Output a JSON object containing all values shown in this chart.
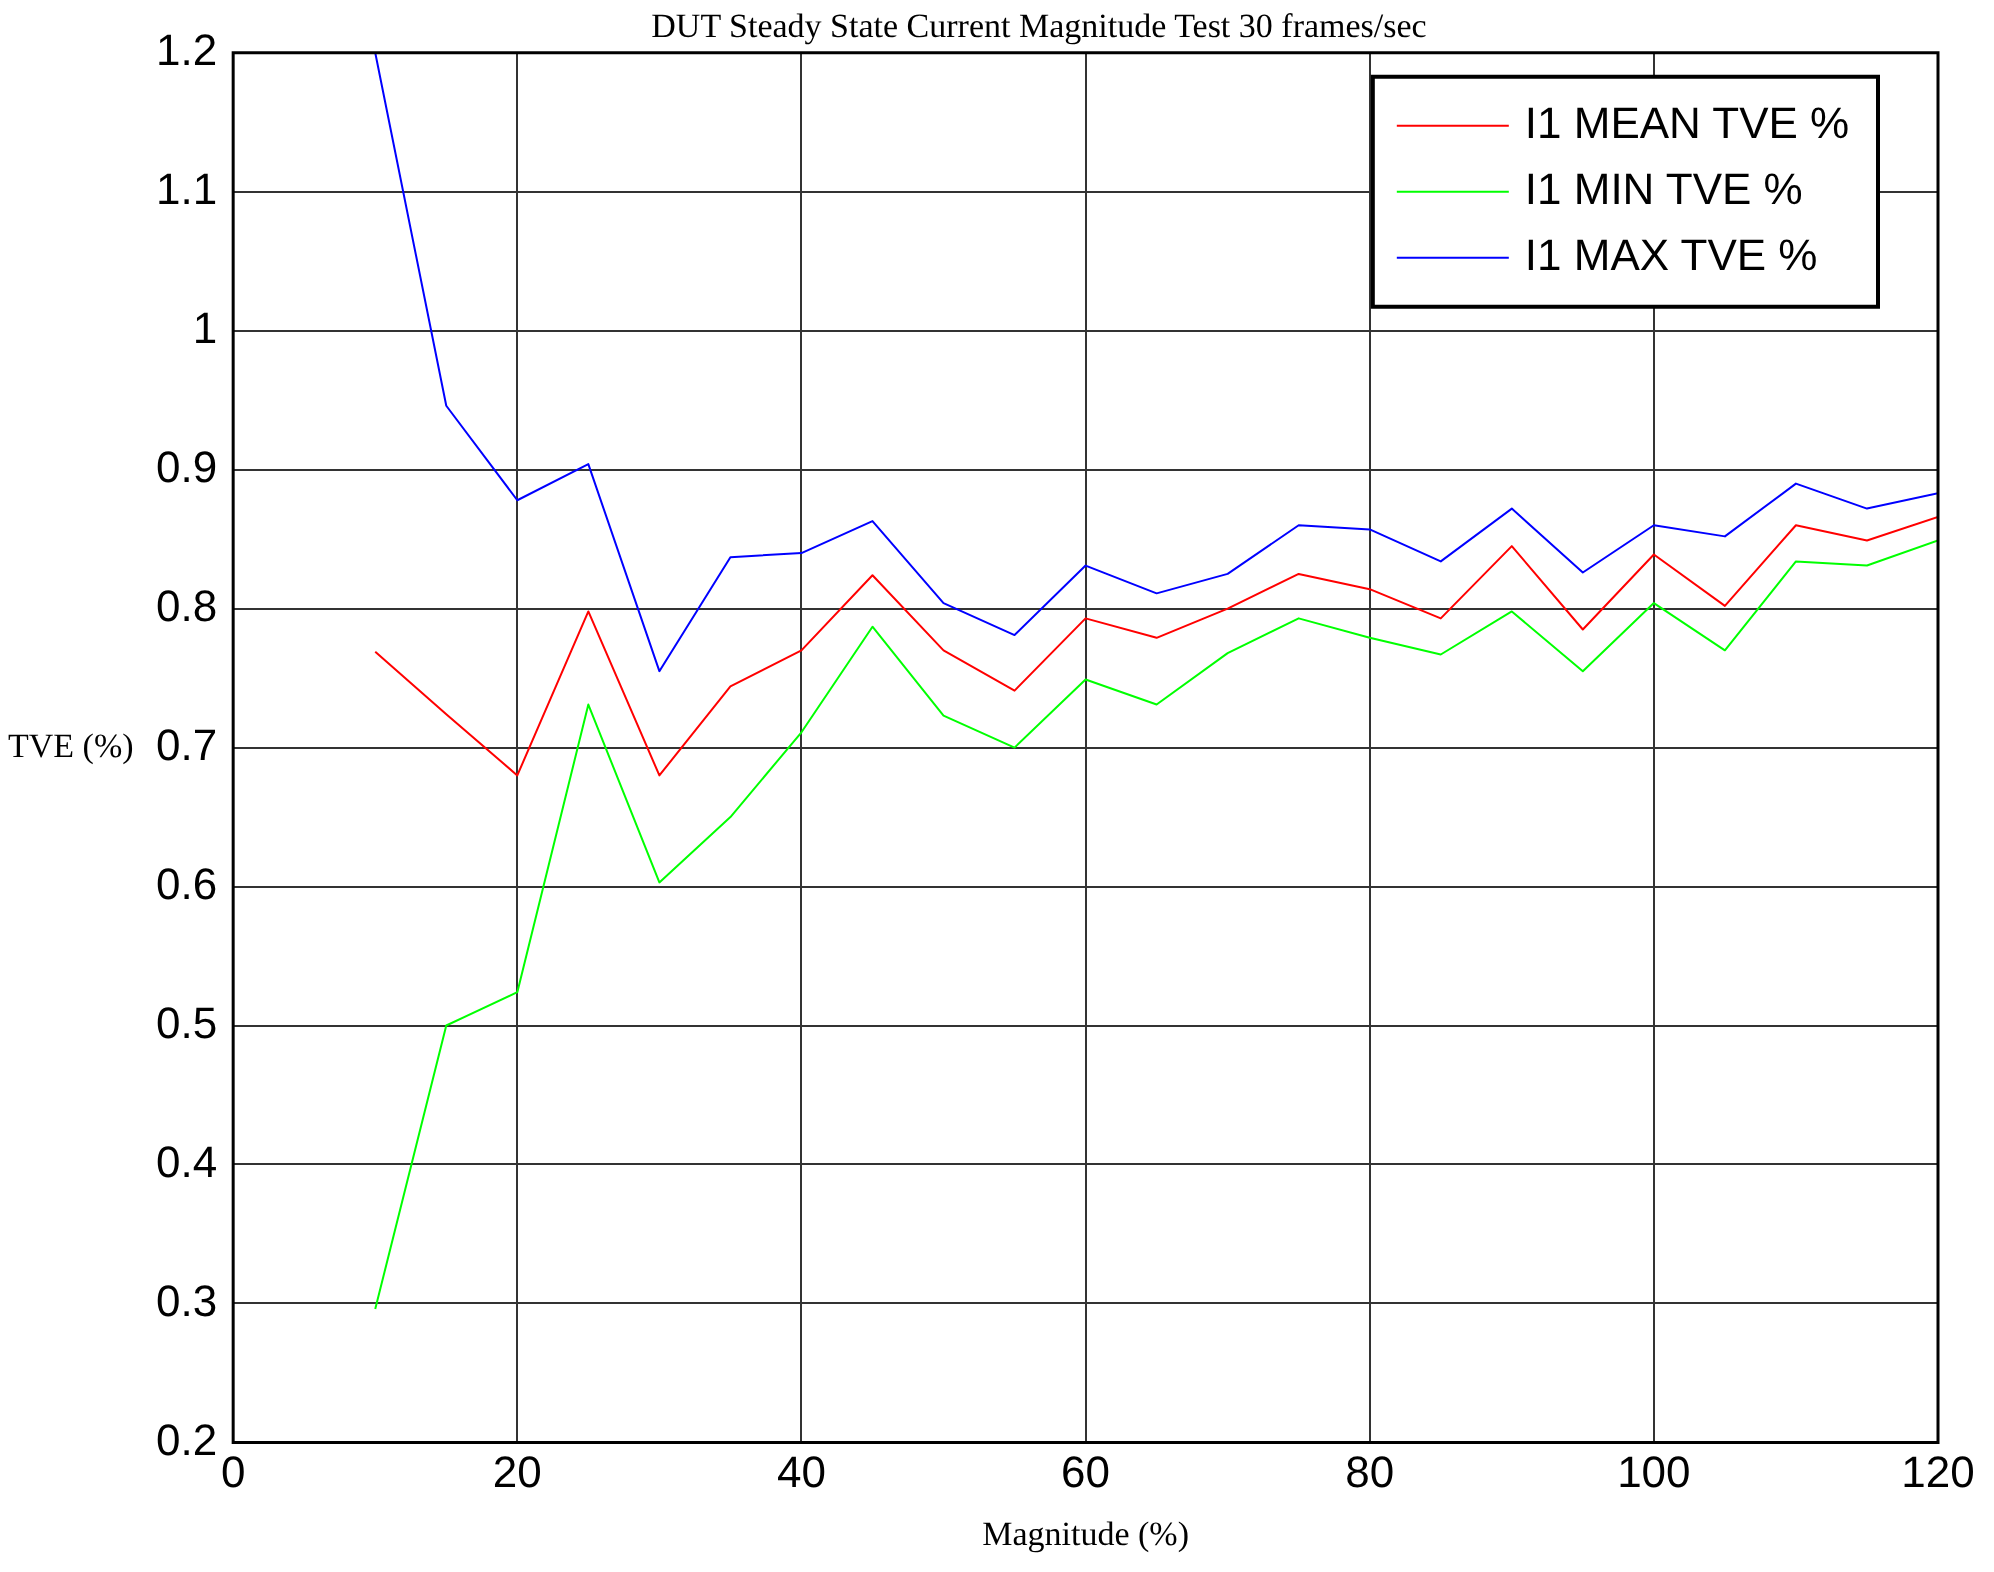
{
  "chart_data": {
    "type": "line",
    "title": "DUT Steady State Current Magnitude Test 30 frames/sec",
    "xlabel": "Magnitude (%)",
    "ylabel": "TVE (%)",
    "x": [
      10,
      15,
      20,
      25,
      30,
      35,
      40,
      45,
      50,
      55,
      60,
      65,
      70,
      75,
      80,
      85,
      90,
      95,
      100,
      105,
      110,
      115,
      120
    ],
    "series": [
      {
        "name": "I1 MEAN TVE %",
        "color": "#ff0000",
        "values": [
          0.769,
          0.724,
          0.68,
          0.798,
          0.68,
          0.744,
          0.77,
          0.824,
          0.77,
          0.741,
          0.793,
          0.779,
          0.8,
          0.825,
          0.814,
          0.793,
          0.845,
          0.785,
          0.839,
          0.802,
          0.86,
          0.849,
          0.866
        ]
      },
      {
        "name": "I1 MIN TVE %",
        "color": "#00ff00",
        "values": [
          0.296,
          0.5,
          0.524,
          0.731,
          0.603,
          0.65,
          0.711,
          0.787,
          0.723,
          0.7,
          0.749,
          0.731,
          0.768,
          0.793,
          0.779,
          0.767,
          0.798,
          0.755,
          0.804,
          0.77,
          0.834,
          0.831,
          0.849
        ]
      },
      {
        "name": "I1 MAX TVE %",
        "color": "#0000ff",
        "values": [
          1.2,
          0.946,
          0.878,
          0.904,
          0.755,
          0.837,
          0.84,
          0.863,
          0.804,
          0.781,
          0.831,
          0.811,
          0.825,
          0.86,
          0.857,
          0.834,
          0.872,
          0.826,
          0.86,
          0.852,
          0.89,
          0.872,
          0.883
        ]
      }
    ],
    "xlim": [
      0,
      120
    ],
    "xticks": [
      0,
      20,
      40,
      60,
      80,
      100,
      120
    ],
    "ylim": [
      0.2,
      1.2
    ],
    "yticks": [
      0.2,
      0.3,
      0.4,
      0.5,
      0.6,
      0.7,
      0.8,
      0.9,
      1,
      1.1,
      1.2
    ],
    "grid": true,
    "legend": "top right",
    "marker": "none",
    "line_style": "solid"
  }
}
